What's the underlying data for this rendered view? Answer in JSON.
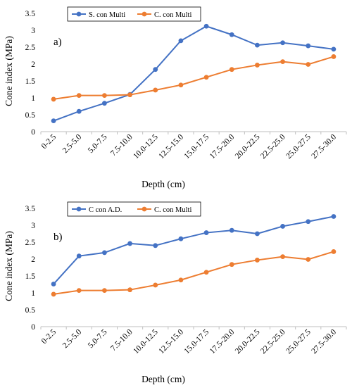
{
  "chart_data": [
    {
      "type": "line",
      "panel_label": "a)",
      "xlabel": "Depth (cm)",
      "ylabel": "Cone index (MPa)",
      "ylim": [
        0,
        3.5
      ],
      "yticks": [
        "0",
        "0.5",
        "1",
        "1.5",
        "2",
        "2.5",
        "3",
        "3.5"
      ],
      "grid": false,
      "legend_position": "top",
      "categories": [
        "0-2.5",
        "2.5-5.0",
        "5.0-7.5",
        "7.5-10.0",
        "10.0-12.5",
        "12.5-15.0",
        "15.0-17.5",
        "17.5-20.0",
        "20.0-22.5",
        "22.5-25.0",
        "25.0-27.5",
        "27.5-30.0"
      ],
      "series": [
        {
          "name": "S. con Multi",
          "color": "#4472c4",
          "values": [
            0.32,
            0.6,
            0.84,
            1.1,
            1.84,
            2.69,
            3.12,
            2.87,
            2.56,
            2.63,
            2.54,
            2.44
          ]
        },
        {
          "name": "C. con Multi",
          "color": "#ed7d31",
          "values": [
            0.96,
            1.07,
            1.07,
            1.09,
            1.23,
            1.38,
            1.61,
            1.84,
            1.97,
            2.07,
            1.99,
            2.22
          ]
        }
      ]
    },
    {
      "type": "line",
      "panel_label": "b)",
      "xlabel": "Depth (cm)",
      "ylabel": "Cone index (MPa)",
      "ylim": [
        0,
        3.5
      ],
      "yticks": [
        "0",
        "0.5",
        "1",
        "1.5",
        "2",
        "2.5",
        "3",
        "3.5"
      ],
      "grid": false,
      "legend_position": "top",
      "categories": [
        "0-2.5",
        "2.5-5.0",
        "5.0-7.5",
        "7.5-10.0",
        "10.0-12.5",
        "12.5-15.0",
        "15.0-17.5",
        "17.5-20.0",
        "20.0-22.5",
        "22.5-25.0",
        "25.0-27.5",
        "27.5-30.0"
      ],
      "series": [
        {
          "name": "C con A.D.",
          "color": "#4472c4",
          "values": [
            1.26,
            2.09,
            2.19,
            2.46,
            2.4,
            2.6,
            2.78,
            2.85,
            2.75,
            2.97,
            3.11,
            3.26
          ]
        },
        {
          "name": "C. con Multi",
          "color": "#ed7d31",
          "values": [
            0.96,
            1.07,
            1.07,
            1.09,
            1.23,
            1.38,
            1.61,
            1.84,
            1.97,
            2.07,
            1.99,
            2.22
          ]
        }
      ]
    }
  ]
}
